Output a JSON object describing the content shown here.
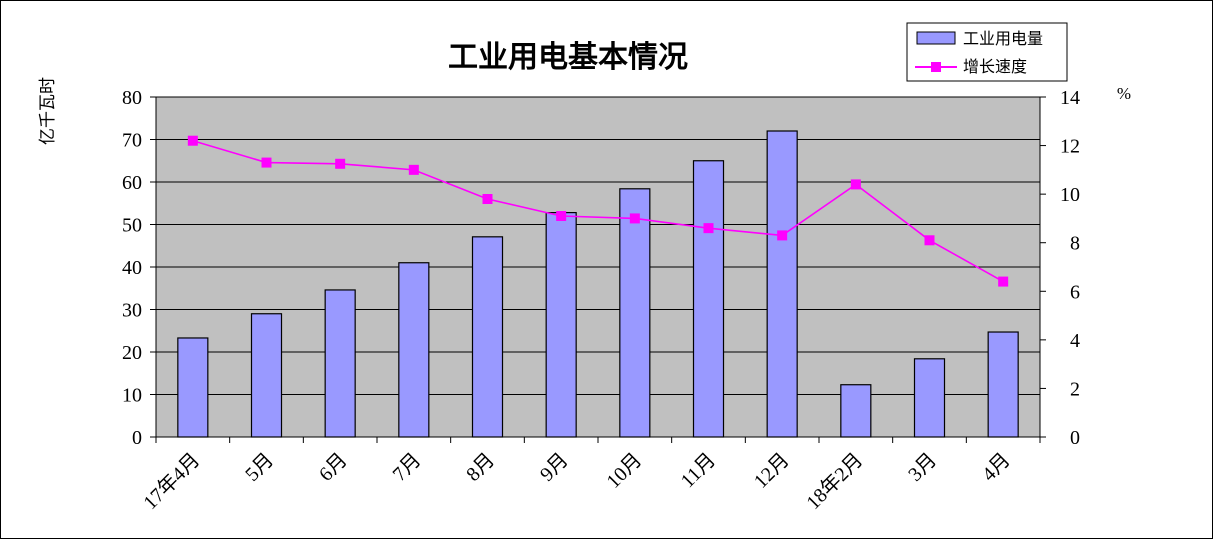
{
  "chart_data": {
    "type": "bar+line",
    "title": "工业用电基本情况",
    "categories": [
      "17年4月",
      "5月",
      "6月",
      "7月",
      "8月",
      "9月",
      "10月",
      "11月",
      "12月",
      "18年2月",
      "3月",
      "4月"
    ],
    "series": [
      {
        "name": "工业用电量",
        "type": "bar",
        "axis": "left",
        "color": "#9999FF",
        "values": [
          23.3,
          29.0,
          34.6,
          41.0,
          47.1,
          52.8,
          58.4,
          65.0,
          72.0,
          12.3,
          18.4,
          24.7
        ]
      },
      {
        "name": "增长速度",
        "type": "line",
        "axis": "right",
        "color": "#FF00FF",
        "values": [
          12.2,
          11.3,
          11.25,
          11.0,
          9.8,
          9.1,
          9.0,
          8.6,
          8.3,
          10.4,
          8.1,
          6.4
        ]
      }
    ],
    "ylabel_left": "亿千瓦时",
    "ylabel_right": "%",
    "ylim_left": [
      0,
      80
    ],
    "yticks_left": [
      "0",
      "10",
      "20",
      "30",
      "40",
      "50",
      "60",
      "70",
      "80"
    ],
    "ylim_right": [
      0,
      14
    ],
    "yticks_right": [
      "0",
      "2",
      "4",
      "6",
      "8",
      "10",
      "12",
      "14"
    ],
    "grid": true,
    "legend_position": "top-right",
    "plot_background": "#C0C0C0"
  }
}
